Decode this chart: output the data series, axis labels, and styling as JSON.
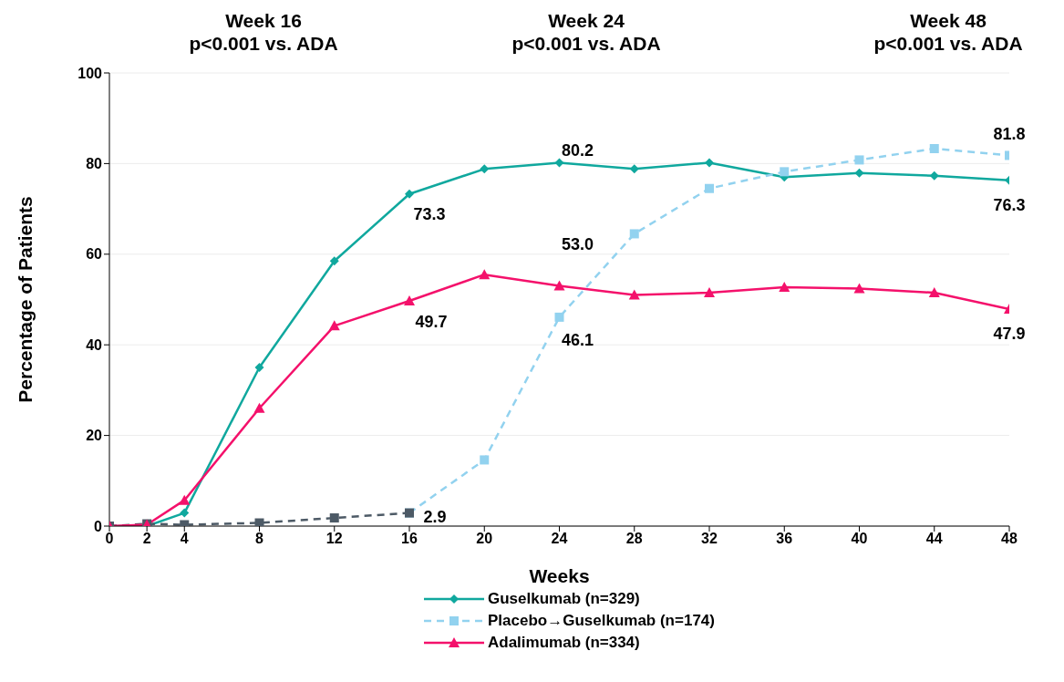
{
  "chart_data": {
    "type": "line",
    "xlabel": "Weeks",
    "ylabel": "Percentage of Patients",
    "xlim": [
      0,
      48
    ],
    "xticks": [
      0,
      2,
      4,
      8,
      12,
      16,
      20,
      24,
      28,
      32,
      36,
      40,
      44,
      48
    ],
    "ylim": [
      0,
      100
    ],
    "yticks": [
      0,
      20,
      40,
      60,
      80,
      100
    ],
    "grid": "y",
    "legend": "bottom",
    "series": [
      {
        "name": "Guselkumab (n=329)",
        "color": "#10a89e",
        "marker": "diamond",
        "line_style": "solid",
        "x": [
          0,
          2,
          4,
          8,
          12,
          16,
          20,
          24,
          28,
          32,
          36,
          40,
          44,
          48
        ],
        "values": [
          0,
          0,
          2.9,
          35,
          58.5,
          73.3,
          78.8,
          80.2,
          78.8,
          80.2,
          77,
          77.9,
          77.3,
          76.3
        ]
      },
      {
        "name": "Placebo→Guselkumab (n=174)",
        "color": "#92d2ef",
        "marker": "square",
        "line_style": "dashed",
        "x": [
          16,
          20,
          24,
          28,
          32,
          36,
          40,
          44,
          48
        ],
        "values": [
          2.9,
          14.6,
          46.1,
          64.5,
          74.5,
          78.2,
          80.8,
          83.3,
          81.8
        ]
      },
      {
        "color": "#4d5a66",
        "marker": "square",
        "line_style": "dashed",
        "x": [
          0,
          2,
          4,
          8,
          12,
          16
        ],
        "values": [
          0,
          0.5,
          0.3,
          0.7,
          1.8,
          2.9
        ]
      },
      {
        "name": "Adalimumab (n=334)",
        "color": "#f4116b",
        "marker": "triangle",
        "line_style": "solid",
        "x": [
          0,
          2,
          4,
          8,
          12,
          16,
          20,
          24,
          28,
          32,
          36,
          40,
          44,
          48
        ],
        "values": [
          0,
          0.3,
          5.7,
          26,
          44.2,
          49.7,
          55.5,
          53.0,
          51,
          51.5,
          52.7,
          52.4,
          51.5,
          47.9
        ]
      }
    ],
    "annotations": [
      "Week 16\np<0.001 vs. ADA",
      "Week 24\np<0.001 vs. ADA",
      "Week 48\np<0.001 vs. ADA",
      {
        "text": "73.3",
        "x": 16,
        "y": 73.3
      },
      {
        "text": "49.7",
        "x": 16,
        "y": 49.7
      },
      {
        "text": "2.9",
        "x": 16,
        "y": 2.9
      },
      {
        "text": "80.2",
        "x": 24,
        "y": 80.2
      },
      {
        "text": "53.0",
        "x": 24,
        "y": 53.0
      },
      {
        "text": "46.1",
        "x": 24,
        "y": 46.1
      },
      {
        "text": "81.8",
        "x": 48,
        "y": 81.8
      },
      {
        "text": "76.3",
        "x": 48,
        "y": 76.3
      },
      {
        "text": "47.9",
        "x": 48,
        "y": 47.9
      }
    ]
  }
}
